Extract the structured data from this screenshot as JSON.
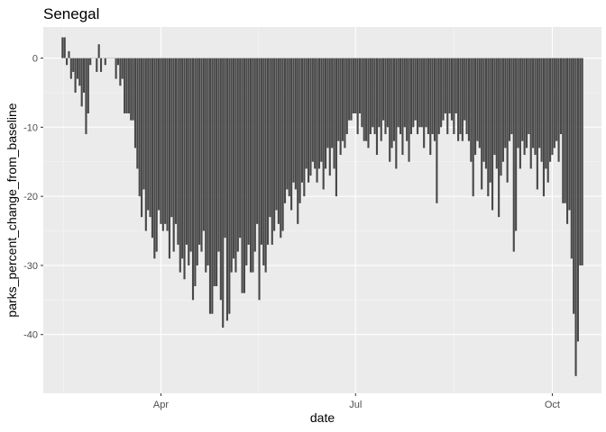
{
  "chart_data": {
    "type": "bar",
    "title": "Senegal",
    "xlabel": "date",
    "ylabel": "parks_percent_change_from_baseline",
    "x_ticks": [
      {
        "date": "2020-04-01",
        "label": "Apr"
      },
      {
        "date": "2020-07-01",
        "label": "Jul"
      },
      {
        "date": "2020-10-01",
        "label": "Oct"
      }
    ],
    "y_ticks": [
      0,
      -10,
      -20,
      -30,
      -40
    ],
    "xlim": [
      "2020-02-06",
      "2020-10-24"
    ],
    "ylim": [
      -48.5,
      4.5
    ],
    "grid": true,
    "legend": "none",
    "colors": {
      "bar": "#484848",
      "panel": "#ebebeb",
      "grid_major": "#ffffff",
      "grid_minor": "#f5f5f5"
    },
    "series": [
      {
        "x_start": "2020-02-15",
        "values": [
          3,
          3,
          -1,
          1,
          -3,
          -2,
          -5,
          -3,
          -4,
          -7,
          -5,
          -11,
          -8,
          -1,
          0,
          0,
          -2,
          2,
          -2,
          0,
          -1,
          0,
          0,
          0,
          0,
          -3,
          -1,
          -4,
          -3,
          -8,
          -8,
          -8,
          -9,
          -9,
          -13,
          -16,
          -20,
          -23,
          -19,
          -25,
          -22,
          -23,
          -26,
          -29,
          -28,
          -22,
          -24,
          -25,
          -24,
          -25,
          -29,
          -23,
          -28,
          -24,
          -27,
          -31,
          -29,
          -32,
          -27,
          -30,
          -28,
          -35,
          -33,
          -30,
          -27,
          -28,
          -25,
          -31,
          -30,
          -37,
          -37,
          -33,
          -33,
          -28,
          -35,
          -39,
          -26,
          -38,
          -37,
          -31,
          -29,
          -31,
          -28,
          -26,
          -34,
          -34,
          -30,
          -27,
          -31,
          -31,
          -28,
          -24,
          -35,
          -27,
          -30,
          -31,
          -27,
          -23,
          -27,
          -25,
          -22,
          -24,
          -26,
          -25,
          -21,
          -19,
          -20,
          -22,
          -18,
          -19,
          -24,
          -21,
          -18,
          -20,
          -16,
          -18,
          -17,
          -15,
          -16,
          -18,
          -16,
          -15,
          -19,
          -16,
          -13,
          -17,
          -13,
          -16,
          -20,
          -12,
          -14,
          -12,
          -13,
          -11,
          -9,
          -9,
          -8,
          -8,
          -11,
          -8,
          -10,
          -12,
          -12,
          -13,
          -11,
          -10,
          -11,
          -14,
          -10,
          -12,
          -9,
          -11,
          -10,
          -15,
          -13,
          -12,
          -16,
          -10,
          -11,
          -14,
          -10,
          -12,
          -15,
          -11,
          -10,
          -9,
          -11,
          -10,
          -10,
          -13,
          -10,
          -11,
          -14,
          -11,
          -12,
          -21,
          -11,
          -10,
          -9,
          -8,
          -11,
          -8,
          -9,
          -11,
          -8,
          -12,
          -11,
          -12,
          -9,
          -11,
          -12,
          -15,
          -20,
          -14,
          -12,
          -13,
          -19,
          -15,
          -16,
          -20,
          -18,
          -22,
          -14,
          -16,
          -23,
          -17,
          -15,
          -13,
          -18,
          -12,
          -11,
          -28,
          -25,
          -13,
          -16,
          -12,
          -14,
          -13,
          -11,
          -16,
          -13,
          -14,
          -19,
          -13,
          -15,
          -20,
          -16,
          -18,
          -15,
          -14,
          -13,
          -12,
          -15,
          -11,
          -21,
          -21,
          -24,
          -22,
          -29,
          -37,
          -46,
          -41,
          -30,
          -30
        ]
      }
    ]
  }
}
